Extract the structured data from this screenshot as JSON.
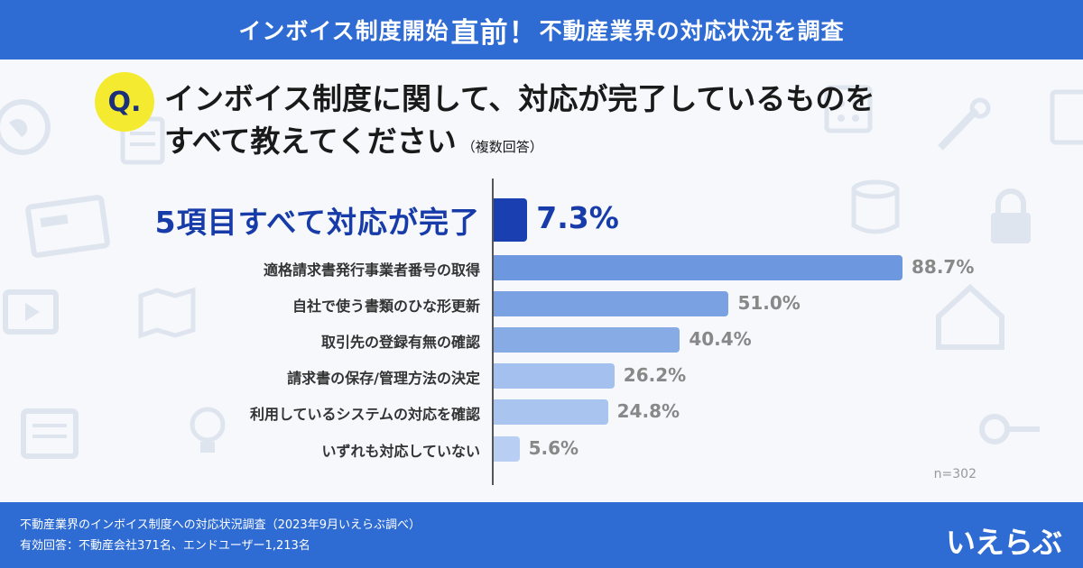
{
  "header": {
    "title_part1": "インボイス制度開始",
    "title_emph": "直前！",
    "title_part2": "不動産業界の対応状況を調査"
  },
  "question": {
    "badge": "Q.",
    "line1": "インボイス制度に関して、対応が完了しているものを",
    "line2": "すべて教えてください",
    "note": "（複数回答）"
  },
  "chart_data": {
    "type": "bar",
    "orientation": "horizontal",
    "categories": [
      "5項目すべて対応が完了",
      "適格請求書発行事業者番号の取得",
      "自社で使う書類のひな形更新",
      "取引先の登録有無の確認",
      "請求書の保存/管理方法の決定",
      "利用しているシステムの対応を確認",
      "いずれも対応していない"
    ],
    "values": [
      7.3,
      88.7,
      51.0,
      40.4,
      26.2,
      24.8,
      5.6
    ],
    "value_labels": [
      "7.3%",
      "88.7%",
      "51.0%",
      "40.4%",
      "26.2%",
      "24.8%",
      "5.6%"
    ],
    "bar_colors": [
      "#1a3fb0",
      "#6d97de",
      "#7aa1e2",
      "#86abe5",
      "#a3c0ee",
      "#a8c4ef",
      "#b8cff3"
    ],
    "highlight_index": 0,
    "xlim": [
      0,
      100
    ],
    "unit": "%",
    "sample": "n=302"
  },
  "footer": {
    "line1": "不動産業界のインボイス制度への対応状況調査（2023年9月いえらぶ調べ）",
    "line2": "有効回答：不動産会社371名、エンドユーザー1,213名",
    "logo": "いえらぶ"
  },
  "icons": [
    "globe-icon",
    "document-icon",
    "card-icon",
    "video-icon",
    "map-icon",
    "newspaper-icon",
    "calculator-icon",
    "tools-icon",
    "database-icon",
    "lock-icon",
    "house-icon",
    "key-icon",
    "lightbulb-icon"
  ]
}
